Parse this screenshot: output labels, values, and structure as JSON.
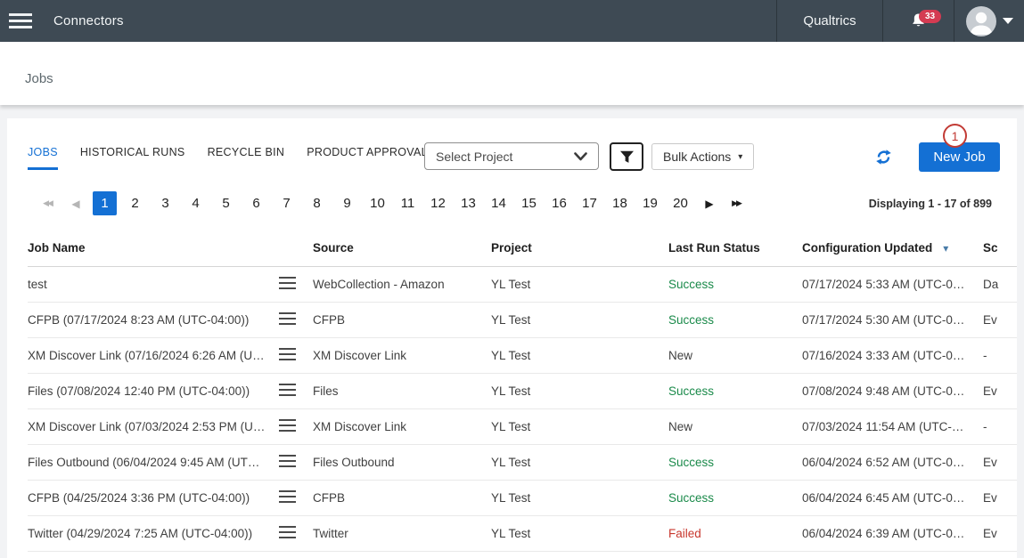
{
  "topbar": {
    "app_title": "Connectors",
    "brand": "Qualtrics",
    "notification_count": "33"
  },
  "page": {
    "title": "Jobs"
  },
  "tabs": {
    "active": "JOBS",
    "items": [
      {
        "label": "JOBS"
      },
      {
        "label": "HISTORICAL RUNS"
      },
      {
        "label": "RECYCLE BIN"
      },
      {
        "label": "PRODUCT APPROVAL"
      }
    ]
  },
  "toolbar": {
    "project_select_value": "Select Project",
    "bulk_actions_label": "Bulk Actions",
    "bulk_actions_caret": "▾",
    "new_job_label": "New Job",
    "annotation_step": "1"
  },
  "pagination": {
    "pages": [
      "1",
      "2",
      "3",
      "4",
      "5",
      "6",
      "7",
      "8",
      "9",
      "10",
      "11",
      "12",
      "13",
      "14",
      "15",
      "16",
      "17",
      "18",
      "19",
      "20"
    ],
    "active_page": "1",
    "prev_arrow": "◀",
    "prev_double_arrow": "◀◀",
    "next_arrow": "▶",
    "next_double_arrow": "▶▶",
    "summary": "Displaying 1 - 17 of 899"
  },
  "table": {
    "headers": {
      "job_name": "Job Name",
      "source": "Source",
      "project": "Project",
      "last_run_status": "Last Run Status",
      "config_updated": "Configuration Updated",
      "schedule": "Sc"
    },
    "sort": {
      "column": "Configuration Updated",
      "caret": "▾"
    },
    "rows": [
      {
        "job_name": "test",
        "source": "WebCollection - Amazon",
        "project": "YL Test",
        "status": "Success",
        "status_type": "success",
        "config_updated": "07/17/2024 5:33 AM (UTC-0…",
        "schedule": "Da"
      },
      {
        "job_name": "CFPB (07/17/2024 8:23 AM (UTC-04:00))",
        "source": "CFPB",
        "project": "YL Test",
        "status": "Success",
        "status_type": "success",
        "config_updated": "07/17/2024 5:30 AM (UTC-0…",
        "schedule": "Ev"
      },
      {
        "job_name": "XM Discover Link (07/16/2024 6:26 AM (U…",
        "source": "XM Discover Link",
        "project": "YL Test",
        "status": "New",
        "status_type": "new",
        "config_updated": "07/16/2024 3:33 AM (UTC-0…",
        "schedule": "-"
      },
      {
        "job_name": "Files (07/08/2024 12:40 PM (UTC-04:00))",
        "source": "Files",
        "project": "YL Test",
        "status": "Success",
        "status_type": "success",
        "config_updated": "07/08/2024 9:48 AM (UTC-0…",
        "schedule": "Ev"
      },
      {
        "job_name": "XM Discover Link (07/03/2024 2:53 PM (U…",
        "source": "XM Discover Link",
        "project": "YL Test",
        "status": "New",
        "status_type": "new",
        "config_updated": "07/03/2024 11:54 AM (UTC-…",
        "schedule": "-"
      },
      {
        "job_name": "Files Outbound (06/04/2024 9:45 AM (UT…",
        "source": "Files Outbound",
        "project": "YL Test",
        "status": "Success",
        "status_type": "success",
        "config_updated": "06/04/2024 6:52 AM (UTC-0…",
        "schedule": "Ev"
      },
      {
        "job_name": "CFPB (04/25/2024 3:36 PM (UTC-04:00))",
        "source": "CFPB",
        "project": "YL Test",
        "status": "Success",
        "status_type": "success",
        "config_updated": "06/04/2024 6:45 AM (UTC-0…",
        "schedule": "Ev"
      },
      {
        "job_name": "Twitter (04/29/2024 7:25 AM (UTC-04:00))",
        "source": "Twitter",
        "project": "YL Test",
        "status": "Failed",
        "status_type": "failed",
        "config_updated": "06/04/2024 6:39 AM (UTC-0…",
        "schedule": "Ev"
      }
    ]
  },
  "colors": {
    "topbar_bg": "#3e4a54",
    "accent_blue": "#1470d4",
    "success_green": "#1a8a4a",
    "failed_red": "#c8382e",
    "badge_red": "#d43b52",
    "annotation_red": "#c23b35"
  }
}
